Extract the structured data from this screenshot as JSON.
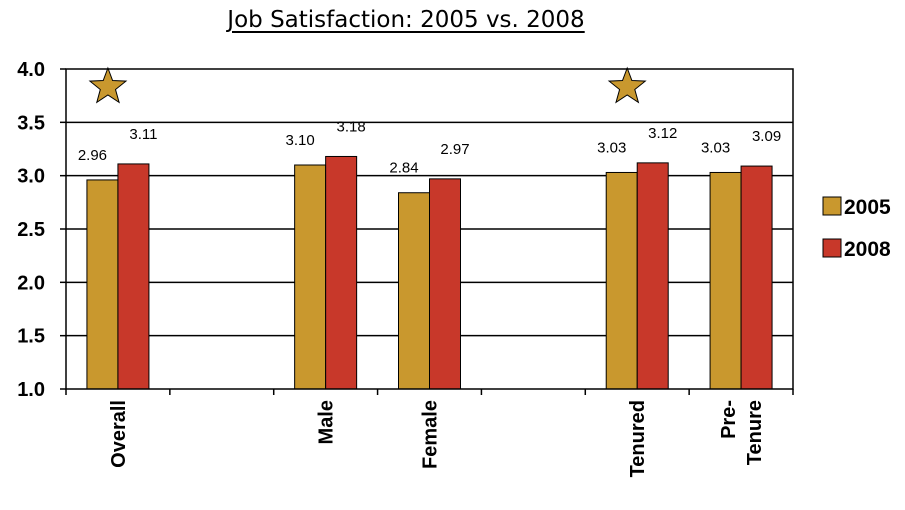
{
  "chart_data": {
    "type": "bar",
    "title": "Job Satisfaction: 2005 vs. 2008",
    "xlabel": "",
    "ylabel": "",
    "ylim": [
      1.0,
      4.0
    ],
    "yticks": [
      "1.0",
      "1.5",
      "2.0",
      "2.5",
      "3.0",
      "3.5",
      "4.0"
    ],
    "grid": true,
    "legend": "right",
    "categories": [
      "Overall",
      "",
      "Male",
      "Female",
      "",
      "Tenured",
      "Pre-\nTenure"
    ],
    "series": [
      {
        "name": "2005",
        "color": "#C9982E",
        "values": [
          2.96,
          null,
          3.1,
          2.84,
          null,
          3.03,
          3.03
        ]
      },
      {
        "name": "2008",
        "color": "#C8382A",
        "values": [
          3.11,
          null,
          3.18,
          2.97,
          null,
          3.12,
          3.09
        ]
      }
    ],
    "markers": [
      {
        "category": "Overall",
        "icon": "star-icon",
        "color": "#C9982E"
      },
      {
        "category": "Tenured",
        "icon": "star-icon",
        "color": "#C9982E"
      }
    ]
  }
}
